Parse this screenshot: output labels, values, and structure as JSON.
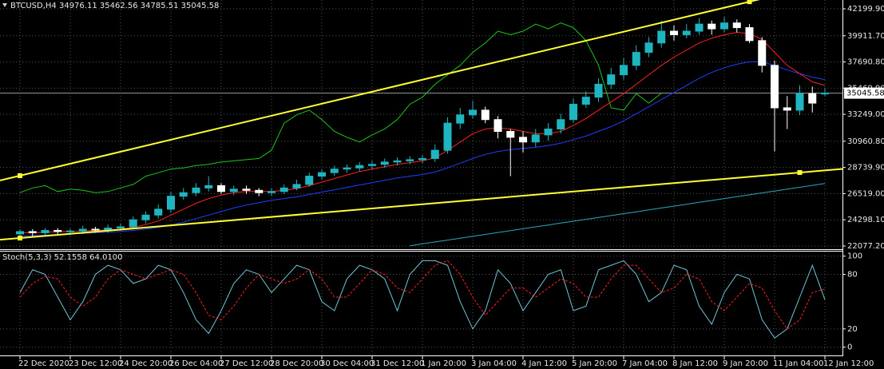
{
  "chart_data": [
    {
      "type": "candlestick",
      "title": "BTCUSD,H4  34976.11 35462.56 34785.51 35045.58",
      "categories": [
        "22 Dec 2020",
        null,
        null,
        null,
        "23 Dec 12:00",
        null,
        null,
        null,
        "24 Dec 20:00",
        null,
        null,
        null,
        "26 Dec 04:00",
        null,
        null,
        null,
        "27 Dec 12:00",
        null,
        null,
        null,
        "28 Dec 20:00",
        null,
        null,
        null,
        "30 Dec 04:00",
        null,
        null,
        null,
        "31 Dec 12:00",
        null,
        null,
        null,
        "1 Jan 20:00",
        null,
        null,
        null,
        "3 Jan 04:00",
        null,
        null,
        null,
        "4 Jan 12:00",
        null,
        null,
        null,
        "5 Jan 20:00",
        null,
        null,
        null,
        "7 Jan 04:00",
        null,
        null,
        null,
        "8 Jan 12:00",
        null,
        null,
        null,
        "9 Jan 20:00",
        null,
        null,
        null,
        "11 Jan 04:00",
        null,
        null,
        null,
        "12 Jan 12:00"
      ],
      "open": [
        23100,
        23300,
        23200,
        23400,
        23300,
        23350,
        23500,
        23450,
        23600,
        23700,
        24300,
        24700,
        25200,
        26300,
        26600,
        27000,
        27200,
        26700,
        26900,
        26800,
        26600,
        26700,
        27000,
        27300,
        28000,
        28300,
        28600,
        28700,
        28900,
        29000,
        29200,
        29300,
        29400,
        29500,
        30200,
        32500,
        33200,
        33600,
        32800,
        31800,
        31300,
        30900,
        31500,
        32000,
        32800,
        34100,
        34700,
        35800,
        36600,
        37400,
        38500,
        39300,
        40300,
        40000,
        40300,
        40900,
        40500,
        41000,
        40600,
        39500,
        37400,
        33800,
        33600,
        35000,
        34976.11
      ],
      "high": [
        23500,
        23500,
        23600,
        23600,
        23550,
        23800,
        23700,
        23900,
        24000,
        24600,
        25000,
        25600,
        26700,
        27000,
        27400,
        28000,
        27400,
        27200,
        27200,
        27000,
        27000,
        27300,
        27700,
        28300,
        28600,
        28900,
        29000,
        29200,
        29300,
        29500,
        29600,
        29700,
        29800,
        30700,
        33000,
        33800,
        34400,
        33900,
        33100,
        32000,
        31800,
        32000,
        32500,
        33300,
        34600,
        35200,
        36300,
        37200,
        38000,
        39100,
        39800,
        41200,
        40800,
        40900,
        41400,
        41200,
        41500,
        41300,
        40900,
        39800,
        37800,
        34800,
        35700,
        35600,
        35462.56
      ],
      "low": [
        22900,
        22900,
        23000,
        23000,
        23000,
        23100,
        23200,
        23200,
        23400,
        23500,
        24000,
        24400,
        24900,
        26000,
        26300,
        26700,
        26500,
        26400,
        26500,
        26300,
        26300,
        26500,
        26800,
        27100,
        27700,
        28000,
        28300,
        28400,
        28600,
        28700,
        28900,
        29000,
        29100,
        29200,
        29900,
        32000,
        32900,
        32500,
        31200,
        28000,
        30000,
        30500,
        31000,
        31600,
        32500,
        33800,
        34300,
        35400,
        36200,
        37000,
        38100,
        38900,
        39500,
        39700,
        40000,
        40000,
        40200,
        40200,
        39300,
        36800,
        30100,
        32000,
        33200,
        33400,
        34785.51
      ],
      "close": [
        23300,
        23200,
        23400,
        23300,
        23350,
        23500,
        23450,
        23600,
        23700,
        24300,
        24700,
        25200,
        26300,
        26600,
        27000,
        27200,
        26700,
        26900,
        26800,
        26600,
        26700,
        27000,
        27300,
        28000,
        28300,
        28600,
        28700,
        28900,
        29000,
        29200,
        29300,
        29400,
        29500,
        30200,
        32500,
        33200,
        33600,
        32800,
        31800,
        31300,
        30900,
        31500,
        32000,
        32800,
        34100,
        34700,
        35800,
        36600,
        37400,
        38500,
        39300,
        40300,
        40000,
        40300,
        40900,
        40500,
        41000,
        40600,
        39500,
        37400,
        33800,
        33600,
        35000,
        34200,
        35045.58
      ],
      "up_color": "#1fb5c0",
      "down_color": "#ffffff",
      "overlays": [
        {
          "color": "#2aa7c0",
          "values": [
            null,
            null,
            null,
            null,
            null,
            null,
            null,
            null,
            null,
            null,
            null,
            null,
            null,
            null,
            null,
            null,
            null,
            null,
            null,
            null,
            null,
            null,
            null,
            null,
            null,
            null,
            null,
            null,
            null,
            null,
            null,
            22100,
            22260,
            22420,
            22580,
            22740,
            22900,
            23060,
            23220,
            23380,
            23540,
            23700,
            23860,
            24020,
            24180,
            24340,
            24500,
            24660,
            24820,
            24980,
            25140,
            25300,
            25460,
            25620,
            25780,
            25940,
            26100,
            26260,
            26420,
            26580,
            26740,
            26900,
            27060,
            27220,
            27380
          ]
        },
        {
          "color": "#19c819",
          "values": [
            26600,
            27000,
            27200,
            26700,
            26900,
            26800,
            26600,
            26700,
            27000,
            27300,
            28000,
            28300,
            28600,
            28700,
            28900,
            29000,
            29200,
            29300,
            29400,
            29500,
            30200,
            32500,
            33200,
            33600,
            32800,
            31800,
            31300,
            30900,
            31500,
            32000,
            32800,
            34100,
            34700,
            35800,
            36600,
            37400,
            38500,
            39300,
            40300,
            40000,
            40300,
            40900,
            40500,
            41000,
            40600,
            39500,
            37400,
            33800,
            33600,
            35000,
            34200,
            35045.58,
            null,
            null,
            null,
            null,
            null,
            null,
            null,
            null,
            null,
            null,
            null,
            null,
            null
          ]
        },
        {
          "color": "#1f3fff",
          "values": [
            22900,
            22950,
            23000,
            23050,
            23100,
            23150,
            23200,
            23250,
            23300,
            23400,
            23500,
            23650,
            23850,
            24100,
            24400,
            24700,
            25000,
            25300,
            25550,
            25750,
            25950,
            26100,
            26250,
            26450,
            26650,
            26850,
            27050,
            27250,
            27450,
            27650,
            27850,
            28000,
            28150,
            28350,
            28700,
            29100,
            29500,
            29850,
            30100,
            30250,
            30350,
            30450,
            30600,
            30800,
            31100,
            31400,
            31800,
            32200,
            32700,
            33300,
            33900,
            34500,
            35100,
            35700,
            36300,
            36800,
            37200,
            37500,
            37700,
            37700,
            37400,
            37000,
            36700,
            36400,
            36200
          ]
        },
        {
          "color": "#ff2020",
          "values": [
            23200,
            23200,
            23250,
            23300,
            23300,
            23350,
            23400,
            23450,
            23500,
            23650,
            23900,
            24200,
            24700,
            25200,
            25700,
            26100,
            26400,
            26600,
            26700,
            26700,
            26700,
            26800,
            26950,
            27200,
            27500,
            27800,
            28100,
            28400,
            28600,
            28800,
            29000,
            29150,
            29300,
            29550,
            30200,
            30900,
            31600,
            32000,
            32100,
            32000,
            31800,
            31600,
            31600,
            31800,
            32300,
            32900,
            33600,
            34300,
            35000,
            35800,
            36600,
            37400,
            38100,
            38700,
            39300,
            39700,
            40000,
            40200,
            40100,
            39600,
            38500,
            37400,
            36700,
            36000,
            35700
          ]
        }
      ],
      "trend_lines": [
        {
          "color": "#ffff33",
          "x": [
            0,
            58
          ],
          "values": [
            28040,
            42800
          ]
        },
        {
          "color": "#ffff33",
          "x": [
            0,
            62
          ],
          "values": [
            22750,
            28310
          ]
        }
      ],
      "ylim": [
        21806,
        42945
      ],
      "yticks": [
        {
          "value": 22077.2,
          "label": "22077.20"
        },
        {
          "value": 24298.1,
          "label": "24298.10"
        },
        {
          "value": 26519,
          "label": "26519.00"
        },
        {
          "value": 28739.9,
          "label": "28739.90"
        },
        {
          "value": 30960.8,
          "label": "30960.80"
        },
        {
          "value": 33249,
          "label": "33249.00"
        },
        {
          "value": 35469.9,
          "label": "35469.90"
        },
        {
          "value": 37690.8,
          "label": "37690.80"
        },
        {
          "value": 39911.7,
          "label": "39911.70"
        },
        {
          "value": 42199.9,
          "label": "42199.90"
        }
      ],
      "grid": true
    },
    {
      "type": "line",
      "title": "Stoch(5,3,3) 52.1558 64.0100",
      "series": [
        {
          "color": "#6fc6d6",
          "values": [
            60,
            85,
            80,
            55,
            30,
            50,
            80,
            90,
            85,
            70,
            75,
            90,
            85,
            60,
            30,
            15,
            40,
            70,
            85,
            80,
            60,
            75,
            90,
            85,
            50,
            40,
            75,
            90,
            85,
            75,
            40,
            80,
            95,
            95,
            90,
            50,
            20,
            40,
            85,
            70,
            40,
            60,
            80,
            85,
            40,
            45,
            85,
            90,
            95,
            80,
            50,
            60,
            90,
            85,
            45,
            25,
            60,
            80,
            75,
            30,
            10,
            20,
            55,
            90,
            52.1558
          ]
        },
        {
          "color": "#ff2020",
          "dashed": true,
          "values": [
            55,
            70,
            78,
            75,
            55,
            45,
            55,
            75,
            85,
            80,
            75,
            80,
            85,
            80,
            60,
            35,
            30,
            45,
            65,
            80,
            75,
            70,
            75,
            85,
            75,
            55,
            55,
            70,
            85,
            80,
            65,
            60,
            75,
            90,
            95,
            80,
            55,
            35,
            50,
            65,
            65,
            55,
            65,
            75,
            70,
            55,
            55,
            75,
            90,
            90,
            75,
            60,
            65,
            80,
            75,
            50,
            40,
            55,
            70,
            65,
            40,
            20,
            30,
            60,
            64.01
          ]
        }
      ],
      "ylim": [
        -10,
        105
      ],
      "yticks": [
        0,
        20,
        80,
        100
      ],
      "grid": true
    }
  ]
}
